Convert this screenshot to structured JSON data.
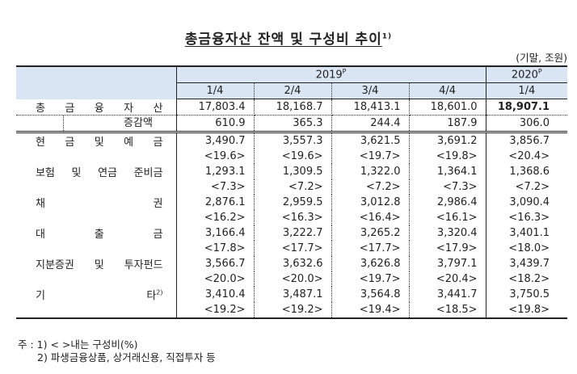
{
  "title": "총금융자산 잔액 및 구성비 추이",
  "title_note": "1)",
  "unit": "(기말, 조원)",
  "header": {
    "years": [
      {
        "label": "2019",
        "sup": "P",
        "span": 4
      },
      {
        "label": "2020",
        "sup": "P",
        "span": 1
      }
    ],
    "quarters": [
      "1/4",
      "2/4",
      "3/4",
      "4/4",
      "1/4"
    ]
  },
  "rows": [
    {
      "label": "총금융자산",
      "label_chars": [
        "총",
        "금",
        "융",
        "자",
        "산"
      ],
      "values": [
        "17,803.4",
        "18,168.7",
        "18,413.1",
        "18,601.0",
        "18,907.1"
      ],
      "bold_last": true
    },
    {
      "label": "증감액",
      "label_chars": [
        "증",
        "감",
        "액"
      ],
      "values": [
        "610.9",
        "365.3",
        "244.4",
        "187.9",
        "306.0"
      ]
    },
    {
      "label": "현금및예금",
      "label_chars": [
        "현",
        "금",
        "및",
        "예",
        "금"
      ],
      "values": [
        "3,490.7",
        "3,557.3",
        "3,621.5",
        "3,691.2",
        "3,856.7"
      ],
      "shares": [
        "<19.6>",
        "<19.6>",
        "<19.7>",
        "<19.8>",
        "<20.4>"
      ]
    },
    {
      "label": "보험 및 연금 준비금",
      "label_chars": [
        "보험",
        "및",
        "연금",
        "준비금"
      ],
      "values": [
        "1,293.1",
        "1,309.5",
        "1,322.0",
        "1,364.1",
        "1,368.6"
      ],
      "shares": [
        "<7.3>",
        "<7.2>",
        "<7.2>",
        "<7.3>",
        "<7.2>"
      ]
    },
    {
      "label": "채권",
      "label_chars": [
        "채",
        "권"
      ],
      "values": [
        "2,876.1",
        "2,959.5",
        "3,012.8",
        "2,986.4",
        "3,090.4"
      ],
      "shares": [
        "<16.2>",
        "<16.3>",
        "<16.4>",
        "<16.1>",
        "<16.3>"
      ]
    },
    {
      "label": "대출금",
      "label_chars": [
        "대",
        "출",
        "금"
      ],
      "values": [
        "3,166.4",
        "3,222.7",
        "3,265.2",
        "3,320.4",
        "3,401.1"
      ],
      "shares": [
        "<17.8>",
        "<17.7>",
        "<17.7>",
        "<17.9>",
        "<18.0>"
      ]
    },
    {
      "label": "지분증권 및 투자펀드",
      "label_chars": [
        "지분증권",
        "및",
        "투자펀드"
      ],
      "values": [
        "3,566.7",
        "3,632.6",
        "3,626.8",
        "3,797.1",
        "3,439.7"
      ],
      "shares": [
        "<20.0>",
        "<20.0>",
        "<19.7>",
        "<20.4>",
        "<18.2>"
      ]
    },
    {
      "label": "기타",
      "label_chars": [
        "기",
        "타"
      ],
      "label_note": "2)",
      "values": [
        "3,410.4",
        "3,487.1",
        "3,564.8",
        "3,441.7",
        "3,750.5"
      ],
      "shares": [
        "<19.2>",
        "<19.2>",
        "<19.4>",
        "<18.5>",
        "<19.8>"
      ]
    }
  ],
  "notes": {
    "line1": "주 : 1) < >내는 구성비(%)",
    "line2": "2) 파생금융상품, 상거래신용, 직접투자 등"
  }
}
